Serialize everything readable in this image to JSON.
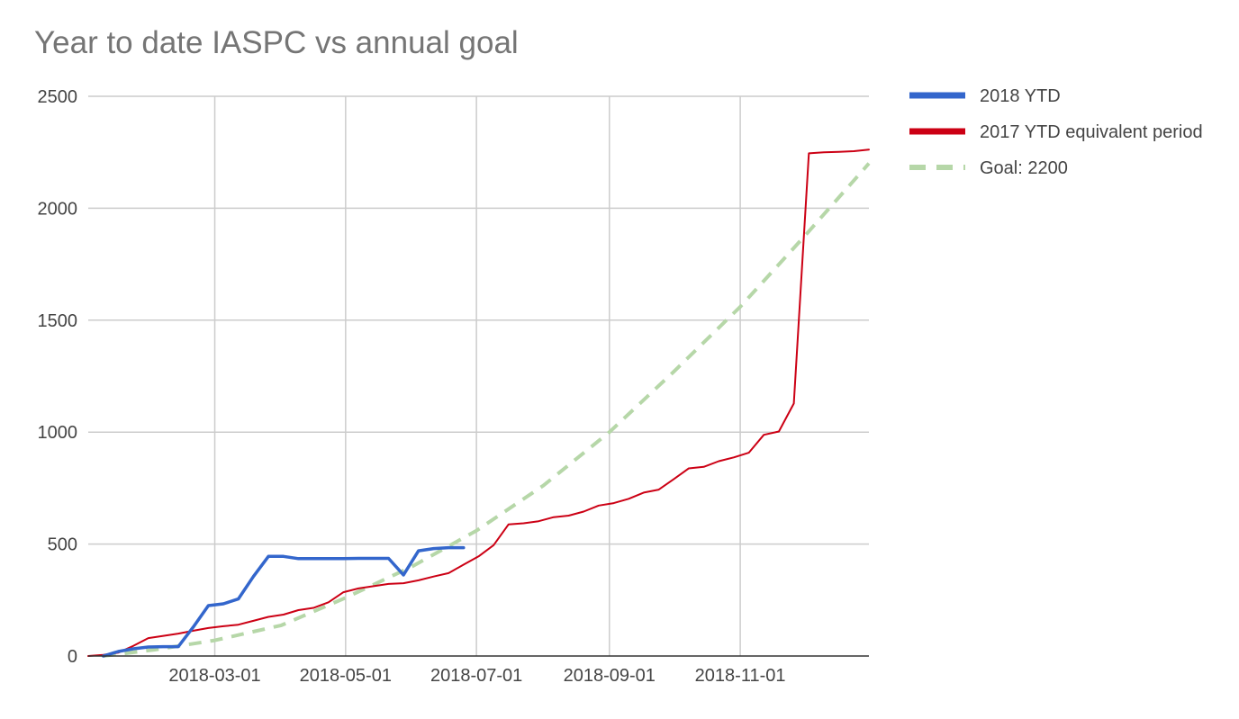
{
  "chart_data": {
    "type": "line",
    "title": "Year to date IASPC vs annual goal",
    "xlabel": "",
    "ylabel": "",
    "x_ticks": [
      "2018-03-01",
      "2018-05-01",
      "2018-07-01",
      "2018-09-01",
      "2018-11-01"
    ],
    "y_ticks": [
      "0",
      "500",
      "1000",
      "1500",
      "2000",
      "2500"
    ],
    "xlim": [
      "2018-01-01",
      "2018-12-31"
    ],
    "ylim": [
      0,
      2500
    ],
    "grid": true,
    "legend_position": "right",
    "series": [
      {
        "name": "2018 YTD",
        "color": "#3366cc",
        "style": "solid",
        "points": [
          [
            "2018-01-08",
            0
          ],
          [
            "2018-01-15",
            20
          ],
          [
            "2018-01-22",
            32
          ],
          [
            "2018-01-29",
            40
          ],
          [
            "2018-02-05",
            42
          ],
          [
            "2018-02-12",
            42
          ],
          [
            "2018-02-19",
            130
          ],
          [
            "2018-02-26",
            225
          ],
          [
            "2018-03-05",
            233
          ],
          [
            "2018-03-12",
            255
          ],
          [
            "2018-03-19",
            355
          ],
          [
            "2018-03-26",
            445
          ],
          [
            "2018-04-02",
            445
          ],
          [
            "2018-04-09",
            435
          ],
          [
            "2018-04-16",
            435
          ],
          [
            "2018-04-23",
            435
          ],
          [
            "2018-04-30",
            435
          ],
          [
            "2018-05-07",
            436
          ],
          [
            "2018-05-14",
            436
          ],
          [
            "2018-05-21",
            436
          ],
          [
            "2018-05-28",
            362
          ],
          [
            "2018-06-04",
            470
          ],
          [
            "2018-06-11",
            480
          ],
          [
            "2018-06-18",
            484
          ],
          [
            "2018-06-25",
            484
          ]
        ]
      },
      {
        "name": "2017 YTD equivalent period",
        "color": "#cc0014",
        "style": "solid",
        "points": [
          [
            "2018-01-01",
            0
          ],
          [
            "2018-01-08",
            5
          ],
          [
            "2018-01-15",
            15
          ],
          [
            "2018-01-22",
            45
          ],
          [
            "2018-01-29",
            80
          ],
          [
            "2018-02-05",
            90
          ],
          [
            "2018-02-12",
            100
          ],
          [
            "2018-02-19",
            113
          ],
          [
            "2018-02-26",
            125
          ],
          [
            "2018-03-05",
            133
          ],
          [
            "2018-03-12",
            140
          ],
          [
            "2018-03-19",
            157
          ],
          [
            "2018-03-26",
            175
          ],
          [
            "2018-04-02",
            185
          ],
          [
            "2018-04-09",
            205
          ],
          [
            "2018-04-16",
            215
          ],
          [
            "2018-04-23",
            240
          ],
          [
            "2018-04-30",
            285
          ],
          [
            "2018-05-07",
            302
          ],
          [
            "2018-05-14",
            312
          ],
          [
            "2018-05-21",
            322
          ],
          [
            "2018-05-28",
            325
          ],
          [
            "2018-06-04",
            338
          ],
          [
            "2018-06-11",
            355
          ],
          [
            "2018-06-18",
            370
          ],
          [
            "2018-06-25",
            408
          ],
          [
            "2018-07-02",
            445
          ],
          [
            "2018-07-09",
            495
          ],
          [
            "2018-07-16",
            588
          ],
          [
            "2018-07-23",
            593
          ],
          [
            "2018-07-30",
            602
          ],
          [
            "2018-08-06",
            620
          ],
          [
            "2018-08-13",
            627
          ],
          [
            "2018-08-20",
            645
          ],
          [
            "2018-08-27",
            672
          ],
          [
            "2018-09-03",
            683
          ],
          [
            "2018-09-10",
            702
          ],
          [
            "2018-09-17",
            730
          ],
          [
            "2018-09-24",
            743
          ],
          [
            "2018-10-01",
            790
          ],
          [
            "2018-10-08",
            838
          ],
          [
            "2018-10-15",
            845
          ],
          [
            "2018-10-22",
            870
          ],
          [
            "2018-10-29",
            887
          ],
          [
            "2018-11-05",
            908
          ],
          [
            "2018-11-12",
            988
          ],
          [
            "2018-11-19",
            1003
          ],
          [
            "2018-11-26",
            1128
          ],
          [
            "2018-12-03",
            2245
          ],
          [
            "2018-12-10",
            2250
          ],
          [
            "2018-12-17",
            2252
          ],
          [
            "2018-12-24",
            2255
          ],
          [
            "2018-12-31",
            2262
          ]
        ]
      },
      {
        "name": "Goal: 2200",
        "color": "#b6d7a8",
        "style": "dashed",
        "points": [
          [
            "2018-01-08",
            0
          ],
          [
            "2018-02-01",
            28
          ],
          [
            "2018-03-01",
            70
          ],
          [
            "2018-04-01",
            137
          ],
          [
            "2018-05-01",
            260
          ],
          [
            "2018-06-01",
            400
          ],
          [
            "2018-07-01",
            560
          ],
          [
            "2018-08-01",
            760
          ],
          [
            "2018-09-01",
            1000
          ],
          [
            "2018-10-01",
            1270
          ],
          [
            "2018-11-01",
            1560
          ],
          [
            "2018-12-01",
            1875
          ],
          [
            "2018-12-31",
            2200
          ]
        ]
      }
    ]
  }
}
